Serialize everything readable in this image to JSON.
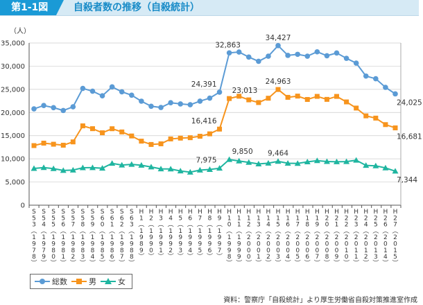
{
  "header": {
    "badge": "第1-1図",
    "title": "自殺者数の推移（自殺統計）"
  },
  "chart_data": {
    "type": "line",
    "title": "自殺者数の推移（自殺統計）",
    "ylabel": "（人）",
    "ylim": [
      0,
      35000
    ],
    "yticks": [
      0,
      5000,
      10000,
      15000,
      20000,
      25000,
      30000,
      35000
    ],
    "ytick_labels": [
      "0",
      "5,000",
      "10,000",
      "15,000",
      "20,000",
      "25,000",
      "30,000",
      "35,000"
    ],
    "grid": "horizontal",
    "legend_position": "bottom-left",
    "categories": [
      "S53",
      "S54",
      "S55",
      "S56",
      "S57",
      "S58",
      "S59",
      "S60",
      "S61",
      "S62",
      "S63",
      "H1",
      "H2",
      "H3",
      "H4",
      "H5",
      "H6",
      "H7",
      "H8",
      "H9",
      "H10",
      "H11",
      "H12",
      "H13",
      "H14",
      "H15",
      "H16",
      "H17",
      "H18",
      "H19",
      "H20",
      "H21",
      "H22",
      "H23",
      "H24",
      "H25",
      "H26",
      "H27"
    ],
    "years": [
      "1978",
      "1979",
      "1980",
      "1981",
      "1982",
      "1983",
      "1984",
      "1985",
      "1986",
      "1987",
      "1988",
      "1989",
      "1990",
      "1991",
      "1992",
      "1993",
      "1994",
      "1995",
      "1996",
      "1997",
      "1998",
      "1999",
      "2000",
      "2001",
      "2002",
      "2003",
      "2004",
      "2005",
      "2006",
      "2007",
      "2008",
      "2009",
      "2010",
      "2011",
      "2012",
      "2013",
      "2014",
      "2015"
    ],
    "series": [
      {
        "name": "総数",
        "color": "#5b9bd5",
        "marker": "circle",
        "values": [
          20788,
          21503,
          21048,
          20434,
          21228,
          25202,
          24596,
          23599,
          25524,
          24460,
          23742,
          22436,
          21346,
          21084,
          22104,
          21851,
          21679,
          22445,
          23104,
          24391,
          32863,
          33048,
          31957,
          31042,
          32143,
          34427,
          32325,
          32552,
          32155,
          33093,
          32249,
          32845,
          31690,
          30651,
          27858,
          27283,
          25427,
          24025
        ]
      },
      {
        "name": "男",
        "color": "#f7941d",
        "marker": "square",
        "values": [
          12859,
          13386,
          13155,
          12942,
          13654,
          17116,
          16508,
          15624,
          16497,
          15802,
          14934,
          13818,
          13102,
          13242,
          14296,
          14468,
          14560,
          14874,
          15393,
          16416,
          23013,
          23512,
          22727,
          22144,
          23080,
          24963,
          23272,
          23540,
          22813,
          23478,
          22831,
          23472,
          22283,
          20955,
          19273,
          18787,
          17386,
          16681
        ]
      },
      {
        "name": "女",
        "color": "#1fb5a0",
        "marker": "triangle",
        "values": [
          7929,
          8117,
          7893,
          7492,
          7574,
          8086,
          8088,
          7975,
          9027,
          8658,
          8808,
          8618,
          8244,
          7842,
          7808,
          7383,
          7119,
          7571,
          7711,
          7975,
          9850,
          9536,
          9230,
          8898,
          9063,
          9464,
          9053,
          9012,
          9342,
          9615,
          9418,
          9373,
          9407,
          9696,
          8585,
          8496,
          8041,
          7344
        ]
      }
    ],
    "annotations": [
      {
        "series": 0,
        "index": 19,
        "text": "24,391"
      },
      {
        "series": 0,
        "index": 20,
        "text": "32,863"
      },
      {
        "series": 0,
        "index": 25,
        "text": "34,427"
      },
      {
        "series": 0,
        "index": 37,
        "text": "24,025"
      },
      {
        "series": 1,
        "index": 19,
        "text": "16,416"
      },
      {
        "series": 1,
        "index": 20,
        "text": "23,013"
      },
      {
        "series": 1,
        "index": 25,
        "text": "24,963"
      },
      {
        "series": 1,
        "index": 37,
        "text": "16,681"
      },
      {
        "series": 2,
        "index": 19,
        "text": "7,975"
      },
      {
        "series": 2,
        "index": 20,
        "text": "9,850"
      },
      {
        "series": 2,
        "index": 25,
        "text": "9,464"
      },
      {
        "series": 2,
        "index": 37,
        "text": "7,344"
      }
    ]
  },
  "legend": [
    {
      "label": "総数"
    },
    {
      "label": "男"
    },
    {
      "label": "女"
    }
  ],
  "source": "資料：警察庁「自殺統計」より厚生労働省自殺対策推進室作成"
}
